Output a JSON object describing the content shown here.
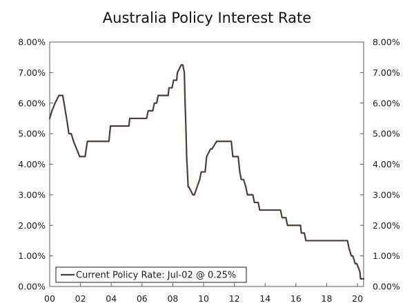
{
  "chart_data": {
    "type": "line",
    "title": "Australia Policy Interest Rate",
    "xlabel": "",
    "ylabel": "",
    "xlim": [
      2000.0,
      2020.4
    ],
    "ylim": [
      0,
      8
    ],
    "x_ticks": [
      {
        "value": 2000,
        "label": "00"
      },
      {
        "value": 2002,
        "label": "02"
      },
      {
        "value": 2004,
        "label": "04"
      },
      {
        "value": 2006,
        "label": "06"
      },
      {
        "value": 2008,
        "label": "08"
      },
      {
        "value": 2010,
        "label": "10"
      },
      {
        "value": 2012,
        "label": "12"
      },
      {
        "value": 2014,
        "label": "14"
      },
      {
        "value": 2016,
        "label": "16"
      },
      {
        "value": 2018,
        "label": "18"
      },
      {
        "value": 2020,
        "label": "20"
      }
    ],
    "y_ticks": [
      {
        "value": 0,
        "label": "0.00%"
      },
      {
        "value": 1,
        "label": "1.00%"
      },
      {
        "value": 2,
        "label": "2.00%"
      },
      {
        "value": 3,
        "label": "3.00%"
      },
      {
        "value": 4,
        "label": "4.00%"
      },
      {
        "value": 5,
        "label": "5.00%"
      },
      {
        "value": 6,
        "label": "6.00%"
      },
      {
        "value": 7,
        "label": "7.00%"
      },
      {
        "value": 8,
        "label": "8.00%"
      }
    ],
    "grid": false,
    "legend_position": "bottom-left",
    "legend_label": "Current Policy Rate: Jul-02 @ 0.25%",
    "series": [
      {
        "name": "Current Policy Rate: Jul-02 @ 0.25%",
        "color": "#4a3f38",
        "x": [
          2000.0,
          2000.15,
          2000.35,
          2000.6,
          2000.85,
          2001.1,
          2001.25,
          2001.4,
          2001.55,
          2001.75,
          2001.95,
          2002.3,
          2002.45,
          2003.85,
          2003.95,
          2005.15,
          2005.2,
          2006.3,
          2006.4,
          2006.7,
          2006.8,
          2006.95,
          2007.05,
          2007.7,
          2007.75,
          2007.95,
          2008.05,
          2008.25,
          2008.3,
          2008.55,
          2008.65,
          2008.75,
          2008.8,
          2008.85,
          2008.9,
          2009.0,
          2009.05,
          2009.3,
          2009.4,
          2009.75,
          2009.85,
          2010.1,
          2010.2,
          2010.45,
          2010.55,
          2010.85,
          2010.9,
          2011.8,
          2011.9,
          2012.25,
          2012.35,
          2012.45,
          2012.6,
          2012.75,
          2012.85,
          2013.2,
          2013.3,
          2013.55,
          2013.65,
          2015.0,
          2015.1,
          2015.35,
          2015.45,
          2016.3,
          2016.35,
          2016.55,
          2016.65,
          2019.35,
          2019.45,
          2019.6,
          2019.7,
          2019.85,
          2019.95,
          2020.15,
          2020.2,
          2020.4
        ],
        "y": [
          5.5,
          5.75,
          6.0,
          6.25,
          6.25,
          5.5,
          5.0,
          5.0,
          4.75,
          4.5,
          4.25,
          4.25,
          4.75,
          4.75,
          5.25,
          5.25,
          5.5,
          5.5,
          5.75,
          5.75,
          6.0,
          6.0,
          6.25,
          6.25,
          6.5,
          6.5,
          6.75,
          6.75,
          7.0,
          7.25,
          7.25,
          7.0,
          6.0,
          5.25,
          4.25,
          3.25,
          3.25,
          3.0,
          3.0,
          3.5,
          3.75,
          3.75,
          4.25,
          4.5,
          4.5,
          4.75,
          4.75,
          4.75,
          4.25,
          4.25,
          3.75,
          3.5,
          3.5,
          3.25,
          3.0,
          3.0,
          2.75,
          2.75,
          2.5,
          2.5,
          2.25,
          2.25,
          2.0,
          2.0,
          1.75,
          1.75,
          1.5,
          1.5,
          1.25,
          1.0,
          1.0,
          0.75,
          0.75,
          0.5,
          0.25,
          0.25
        ]
      }
    ]
  }
}
